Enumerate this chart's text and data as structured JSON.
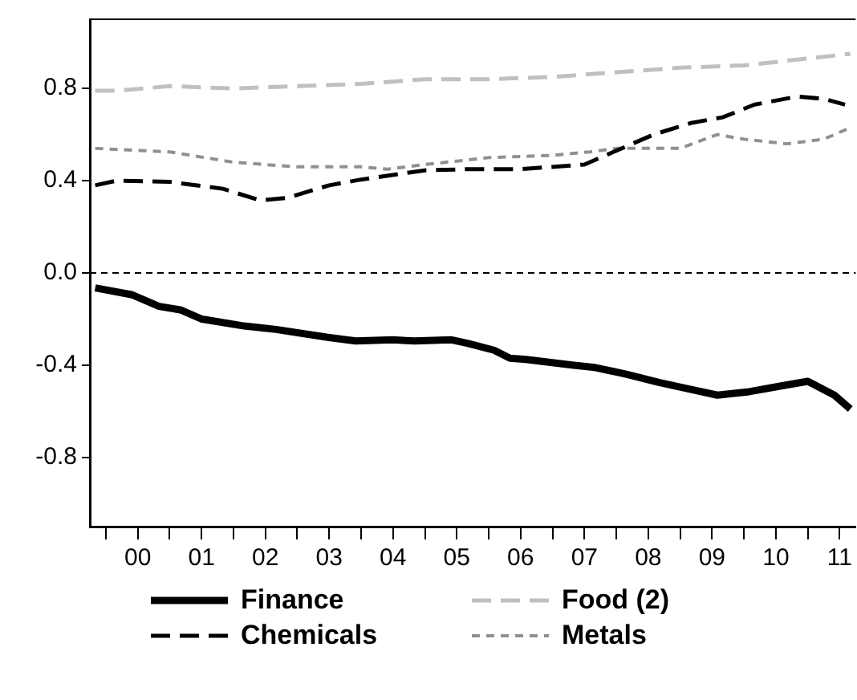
{
  "chart_data": {
    "type": "line",
    "xlim": [
      "1999-10",
      "2011-10"
    ],
    "ylim": [
      -1.1,
      1.1
    ],
    "yticks": [
      {
        "value": -0.8,
        "label": "-0.8"
      },
      {
        "value": -0.4,
        "label": "-0.4"
      },
      {
        "value": 0,
        "label": "0.0"
      },
      {
        "value": 0.4,
        "label": "0.4"
      },
      {
        "value": 0.8,
        "label": "0.8"
      }
    ],
    "xticks": [
      {
        "value": "2000-01",
        "label": null
      },
      {
        "value": "2000-07",
        "label": "00"
      },
      {
        "value": "2001-01",
        "label": null
      },
      {
        "value": "2001-07",
        "label": "01"
      },
      {
        "value": "2002-01",
        "label": null
      },
      {
        "value": "2002-07",
        "label": "02"
      },
      {
        "value": "2003-01",
        "label": null
      },
      {
        "value": "2003-07",
        "label": "03"
      },
      {
        "value": "2004-01",
        "label": null
      },
      {
        "value": "2004-07",
        "label": "04"
      },
      {
        "value": "2005-01",
        "label": null
      },
      {
        "value": "2005-07",
        "label": "05"
      },
      {
        "value": "2006-01",
        "label": null
      },
      {
        "value": "2006-07",
        "label": "06"
      },
      {
        "value": "2007-01",
        "label": null
      },
      {
        "value": "2007-07",
        "label": "07"
      },
      {
        "value": "2008-01",
        "label": null
      },
      {
        "value": "2008-07",
        "label": "08"
      },
      {
        "value": "2009-01",
        "label": null
      },
      {
        "value": "2009-07",
        "label": "09"
      },
      {
        "value": "2010-01",
        "label": null
      },
      {
        "value": "2010-07",
        "label": "10"
      },
      {
        "value": "2011-01",
        "label": null
      },
      {
        "value": "2011-07",
        "label": "11"
      }
    ],
    "grid": false,
    "legend": "bottom",
    "marker": "none",
    "ref_lines": [
      {
        "axis": "y",
        "value": 0,
        "color": "#000000",
        "line_style": "dashed"
      }
    ],
    "series": [
      {
        "name": "Finance",
        "color": "#000000",
        "line_style": "solid",
        "x": [
          "1999-11",
          "2000-06",
          "2000-11",
          "2001-03",
          "2001-07",
          "2002-03",
          "2002-09",
          "2003-07",
          "2003-12",
          "2004-07",
          "2004-11",
          "2005-06",
          "2005-09",
          "2006-02",
          "2006-05",
          "2006-08",
          "2007-05",
          "2007-09",
          "2008-03",
          "2008-09",
          "2009-02",
          "2009-08",
          "2010-02",
          "2010-08",
          "2011-01",
          "2011-06",
          "2011-09"
        ],
        "values": [
          -0.065,
          -0.095,
          -0.145,
          -0.16,
          -0.2,
          -0.23,
          -0.245,
          -0.28,
          -0.295,
          -0.29,
          -0.295,
          -0.29,
          -0.305,
          -0.335,
          -0.37,
          -0.375,
          -0.4,
          -0.41,
          -0.44,
          -0.475,
          -0.5,
          -0.53,
          -0.515,
          -0.49,
          -0.47,
          -0.53,
          -0.59
        ]
      },
      {
        "name": "Food (2)",
        "color": "#c0c0c0",
        "line_style": "dashed",
        "x": [
          "1999-11",
          "2000-03",
          "2001-01",
          "2002-01",
          "2003-01",
          "2004-01",
          "2005-01",
          "2006-01",
          "2007-01",
          "2008-01",
          "2009-01",
          "2010-01",
          "2011-01",
          "2011-09"
        ],
        "values": [
          0.79,
          0.79,
          0.81,
          0.8,
          0.81,
          0.82,
          0.84,
          0.84,
          0.85,
          0.87,
          0.89,
          0.9,
          0.93,
          0.95
        ]
      },
      {
        "name": "Chemicals",
        "color": "#000000",
        "line_style": "dashed",
        "x": [
          "1999-11",
          "2000-03",
          "2001-01",
          "2001-11",
          "2002-06",
          "2002-11",
          "2003-07",
          "2004-01",
          "2005-01",
          "2005-09",
          "2006-07",
          "2007-07",
          "2008-01",
          "2008-08",
          "2009-03",
          "2009-09",
          "2010-03",
          "2010-11",
          "2011-04",
          "2011-08"
        ],
        "values": [
          0.38,
          0.4,
          0.395,
          0.365,
          0.315,
          0.325,
          0.38,
          0.405,
          0.445,
          0.45,
          0.45,
          0.47,
          0.53,
          0.6,
          0.65,
          0.675,
          0.73,
          0.765,
          0.755,
          0.73
        ]
      },
      {
        "name": "Metals",
        "color": "#909090",
        "line_style": "dotted",
        "x": [
          "1999-11",
          "2001-01",
          "2002-01",
          "2003-01",
          "2004-01",
          "2004-06",
          "2005-01",
          "2006-01",
          "2007-01",
          "2007-08",
          "2008-01",
          "2009-01",
          "2009-08",
          "2010-01",
          "2010-09",
          "2011-04",
          "2011-09"
        ],
        "values": [
          0.54,
          0.525,
          0.48,
          0.46,
          0.46,
          0.45,
          0.47,
          0.5,
          0.51,
          0.525,
          0.54,
          0.54,
          0.6,
          0.58,
          0.56,
          0.58,
          0.63
        ]
      }
    ]
  }
}
